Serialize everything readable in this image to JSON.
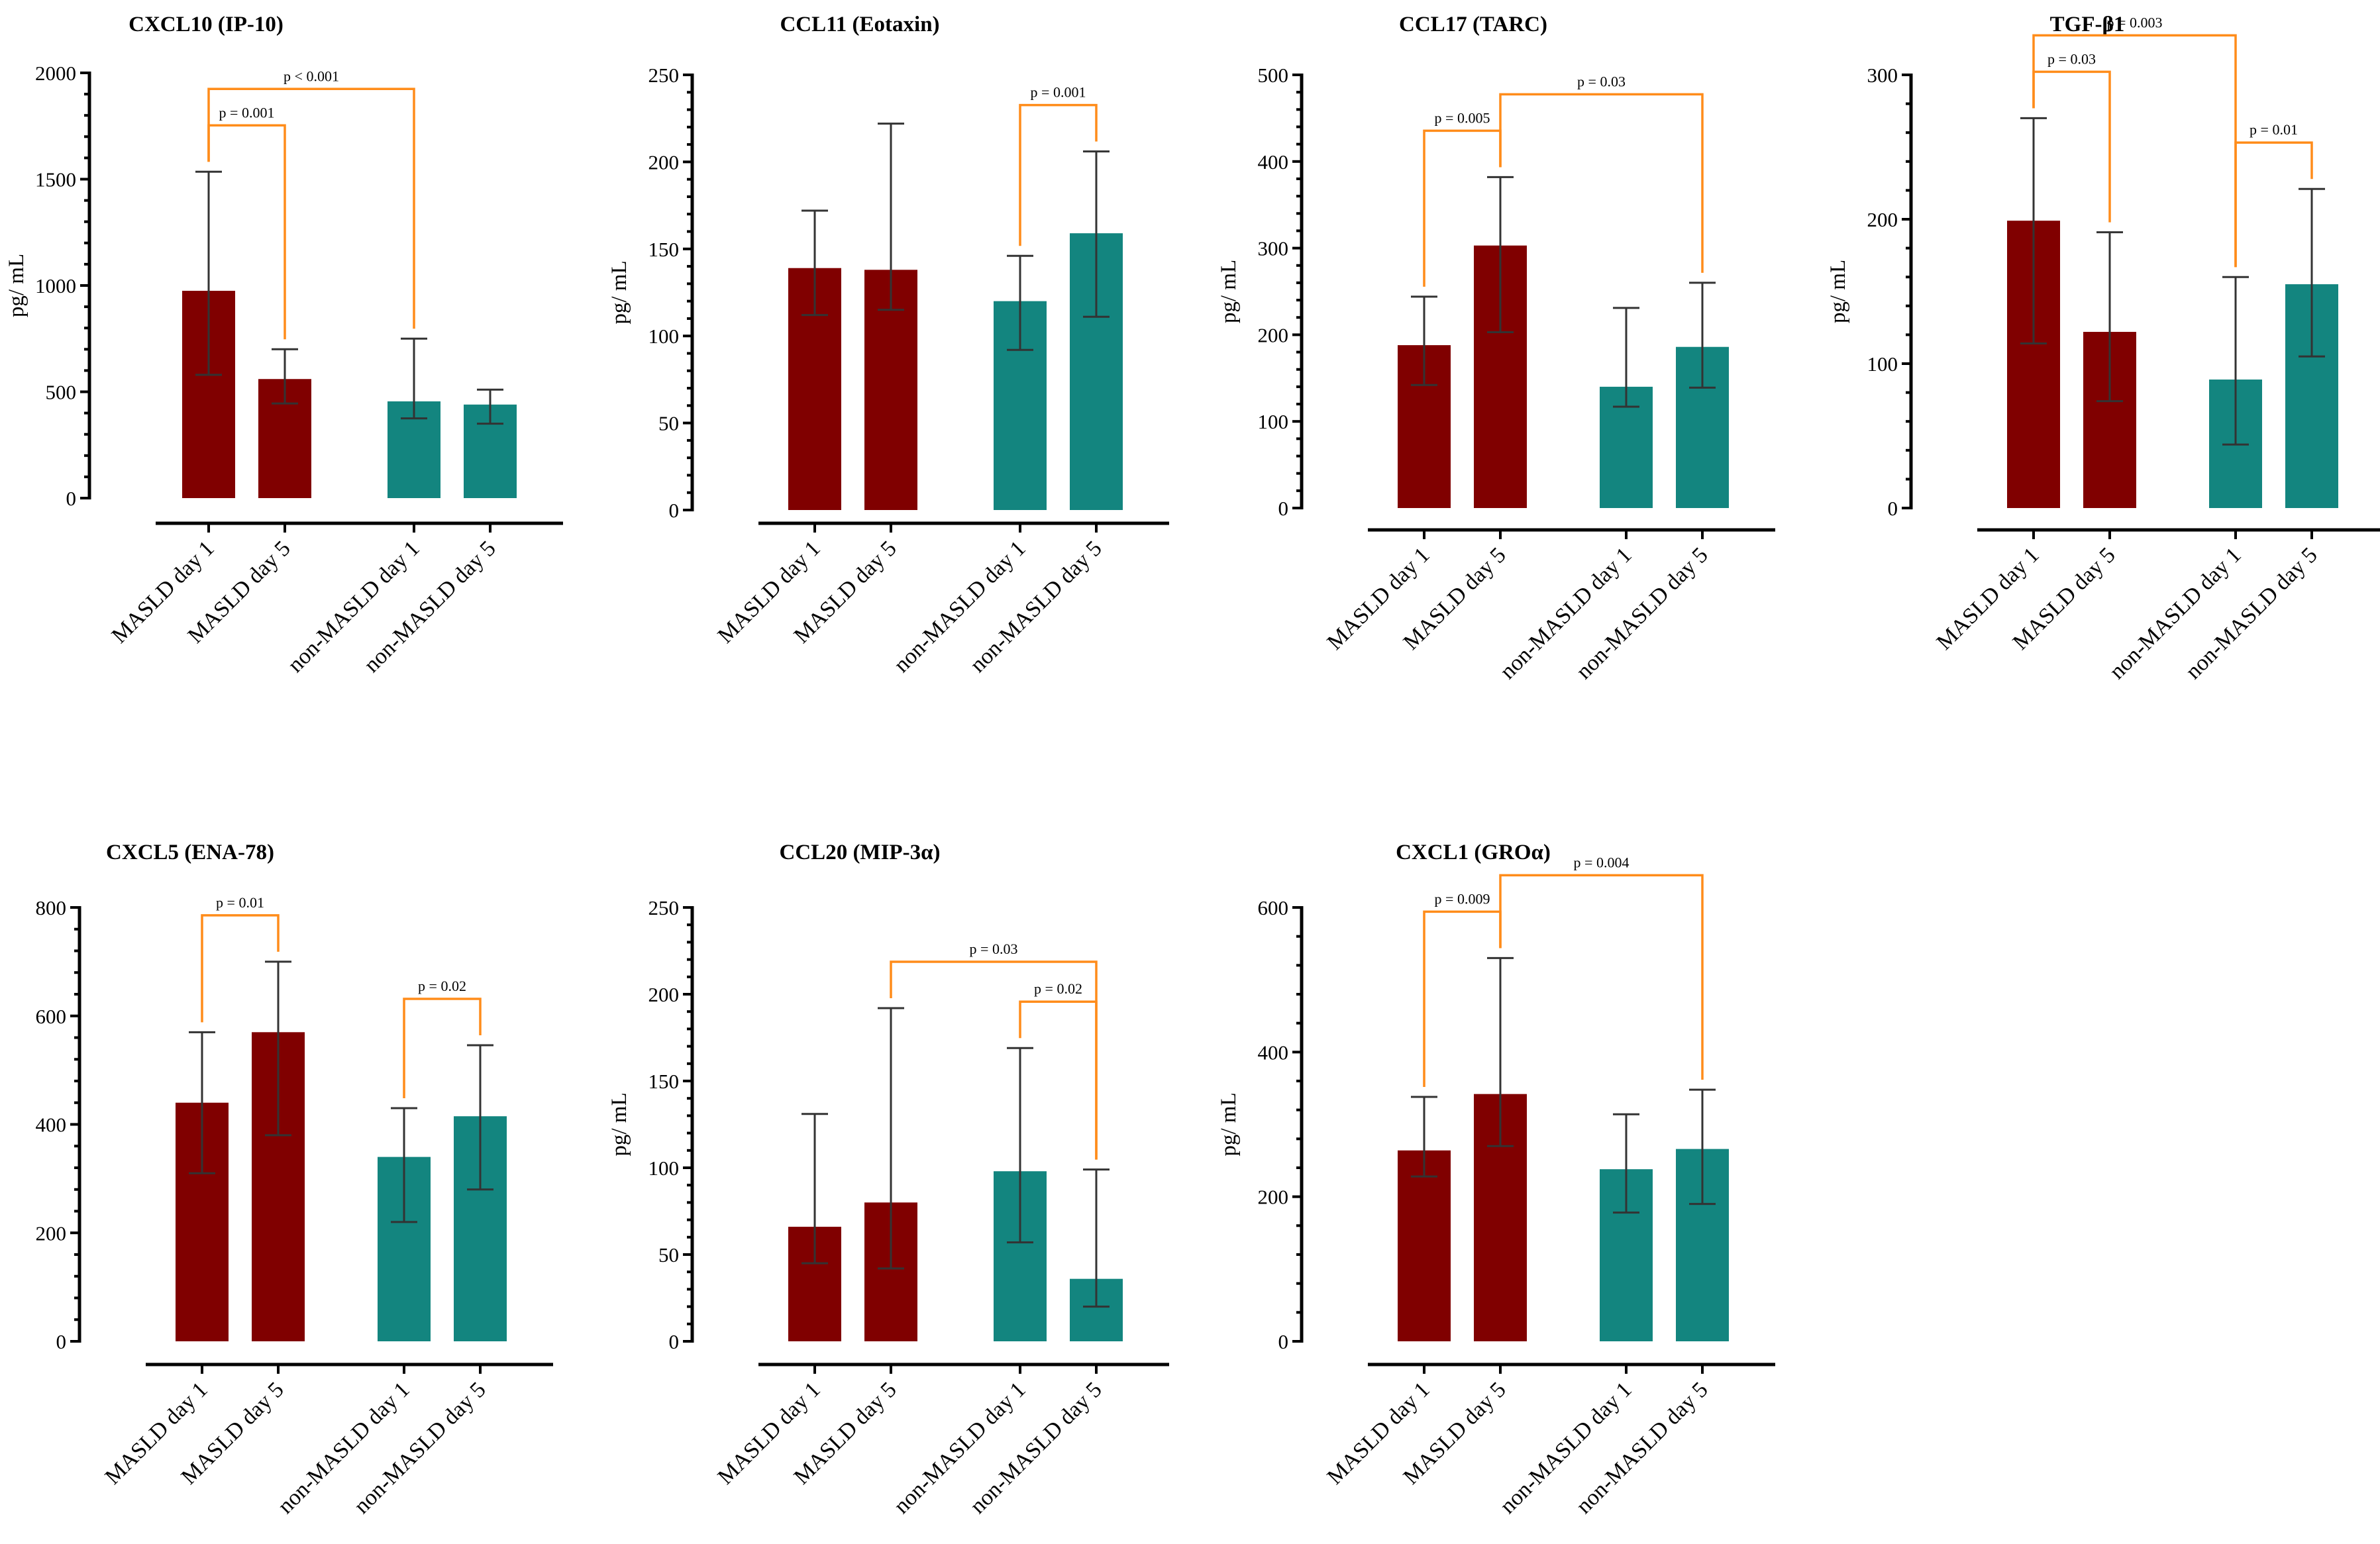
{
  "colors": {
    "masld": "#800000",
    "non_masld": "#13857f",
    "significance": "#ff8c1a",
    "error_bar": "#333333"
  },
  "chart_data": [
    {
      "type": "bar",
      "title": "CXCL10 (IP-10)",
      "ylabel": "pg/ mL",
      "ylim": [
        0,
        2000
      ],
      "yticks": [
        0,
        500,
        1000,
        1500,
        2000
      ],
      "categories": [
        "MASLD day 1",
        "MASLD day 5",
        "non-MASLD day 1",
        "non-MASLD day 5"
      ],
      "values": [
        975,
        560,
        455,
        440
      ],
      "error_low": [
        580,
        445,
        375,
        350
      ],
      "error_high": [
        1535,
        700,
        750,
        510
      ],
      "comparisons": [
        {
          "from": 0,
          "to": 1,
          "label": "p = 0.001"
        },
        {
          "from": 0,
          "to": 2,
          "label": "p < 0.001"
        }
      ]
    },
    {
      "type": "bar",
      "title": "CCL11 (Eotaxin)",
      "ylabel": "pg/ mL",
      "ylim": [
        0,
        250
      ],
      "yticks": [
        0,
        50,
        100,
        150,
        200,
        250
      ],
      "categories": [
        "MASLD day 1",
        "MASLD day 5",
        "non-MASLD day 1",
        "non-MASLD day 5"
      ],
      "values": [
        139,
        138,
        120,
        159
      ],
      "error_low": [
        112,
        115,
        92,
        111
      ],
      "error_high": [
        172,
        222,
        146,
        206
      ],
      "comparisons": [
        {
          "from": 2,
          "to": 3,
          "label": "p = 0.001"
        }
      ]
    },
    {
      "type": "bar",
      "title": "CCL17 (TARC)",
      "ylabel": "pg/ mL",
      "ylim": [
        0,
        500
      ],
      "yticks": [
        0,
        100,
        200,
        300,
        400,
        500
      ],
      "categories": [
        "MASLD day 1",
        "MASLD day 5",
        "non-MASLD day 1",
        "non-MASLD day 5"
      ],
      "values": [
        188,
        303,
        140,
        186
      ],
      "error_low": [
        142,
        203,
        117,
        139
      ],
      "error_high": [
        244,
        382,
        231,
        260
      ],
      "comparisons": [
        {
          "from": 0,
          "to": 1,
          "label": "p = 0.005"
        },
        {
          "from": 1,
          "to": 3,
          "label": "p = 0.03"
        }
      ]
    },
    {
      "type": "bar",
      "title": "TGF-β1",
      "ylabel": "pg/ mL",
      "ylim": [
        0,
        300
      ],
      "yticks": [
        0,
        100,
        200,
        300
      ],
      "categories": [
        "MASLD day 1",
        "MASLD day 5",
        "non-MASLD day 1",
        "non-MASLD day 5"
      ],
      "values": [
        199,
        122,
        89,
        155
      ],
      "error_low": [
        114,
        74,
        44,
        105
      ],
      "error_high": [
        270,
        191,
        160,
        221
      ],
      "comparisons": [
        {
          "from": 0,
          "to": 1,
          "label": "p = 0.03"
        },
        {
          "from": 0,
          "to": 2,
          "label": "p = 0.003"
        },
        {
          "from": 2,
          "to": 3,
          "label": "p = 0.01"
        }
      ]
    },
    {
      "type": "bar",
      "title": "CXCL5 (ENA-78)",
      "ylabel": "",
      "ylim": [
        0,
        800
      ],
      "yticks": [
        0,
        200,
        400,
        600,
        800
      ],
      "categories": [
        "MASLD day 1",
        "MASLD day 5",
        "non-MASLD day 1",
        "non-MASLD day 5"
      ],
      "values": [
        440,
        570,
        340,
        415
      ],
      "error_low": [
        310,
        380,
        220,
        280
      ],
      "error_high": [
        570,
        700,
        430,
        546
      ],
      "comparisons": [
        {
          "from": 0,
          "to": 1,
          "label": "p = 0.01"
        },
        {
          "from": 2,
          "to": 3,
          "label": "p = 0.02"
        }
      ]
    },
    {
      "type": "bar",
      "title": "CCL20 (MIP-3α)",
      "ylabel": "pg/ mL",
      "ylim": [
        0,
        250
      ],
      "yticks": [
        0,
        50,
        100,
        150,
        200,
        250
      ],
      "categories": [
        "MASLD day 1",
        "MASLD day 5",
        "non-MASLD day 1",
        "non-MASLD day 5"
      ],
      "values": [
        66,
        80,
        98,
        36
      ],
      "error_low": [
        45,
        42,
        57,
        20
      ],
      "error_high": [
        131,
        192,
        169,
        99
      ],
      "comparisons": [
        {
          "from": 2,
          "to": 3,
          "label": "p = 0.02"
        },
        {
          "from": 1,
          "to": 3,
          "label": "p = 0.03"
        }
      ]
    },
    {
      "type": "bar",
      "title": "CXCL1 (GROα)",
      "ylabel": "pg/ mL",
      "ylim": [
        0,
        600
      ],
      "yticks": [
        0,
        200,
        400,
        600
      ],
      "categories": [
        "MASLD day 1",
        "MASLD day 5",
        "non-MASLD day 1",
        "non-MASLD day 5"
      ],
      "values": [
        264,
        342,
        238,
        266
      ],
      "error_low": [
        228,
        270,
        178,
        190
      ],
      "error_high": [
        338,
        530,
        314,
        348
      ],
      "comparisons": [
        {
          "from": 0,
          "to": 1,
          "label": "p = 0.009"
        },
        {
          "from": 1,
          "to": 3,
          "label": "p = 0.004"
        }
      ]
    }
  ]
}
